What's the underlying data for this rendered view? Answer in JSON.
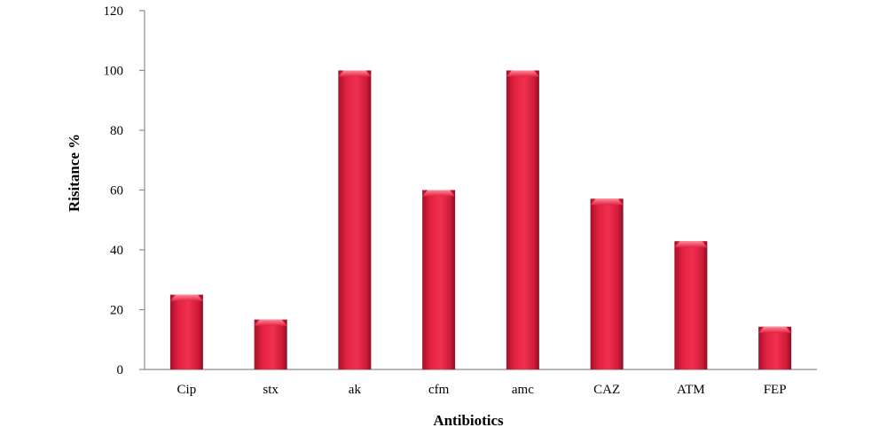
{
  "chart_data": {
    "type": "bar",
    "categories": [
      "Cip",
      "stx",
      "ak",
      "cfm",
      "amc",
      "CAZ",
      "ATM",
      "FEP"
    ],
    "values": [
      25,
      16.7,
      100,
      60,
      100,
      57.1,
      42.9,
      14.3
    ],
    "title": "",
    "xlabel": "Antibiotics",
    "ylabel": "Risitance %",
    "ylim": [
      0,
      120
    ],
    "yticks": [
      0,
      20,
      40,
      60,
      80,
      100,
      120
    ],
    "grid": false,
    "legend": "none",
    "colors": {
      "bar_light": "#f0304f",
      "bar_main": "#d81e3e",
      "bar_dark": "#8c0f24",
      "bar_cap": "#ff6b82",
      "axis": "#8c8c8c"
    }
  }
}
